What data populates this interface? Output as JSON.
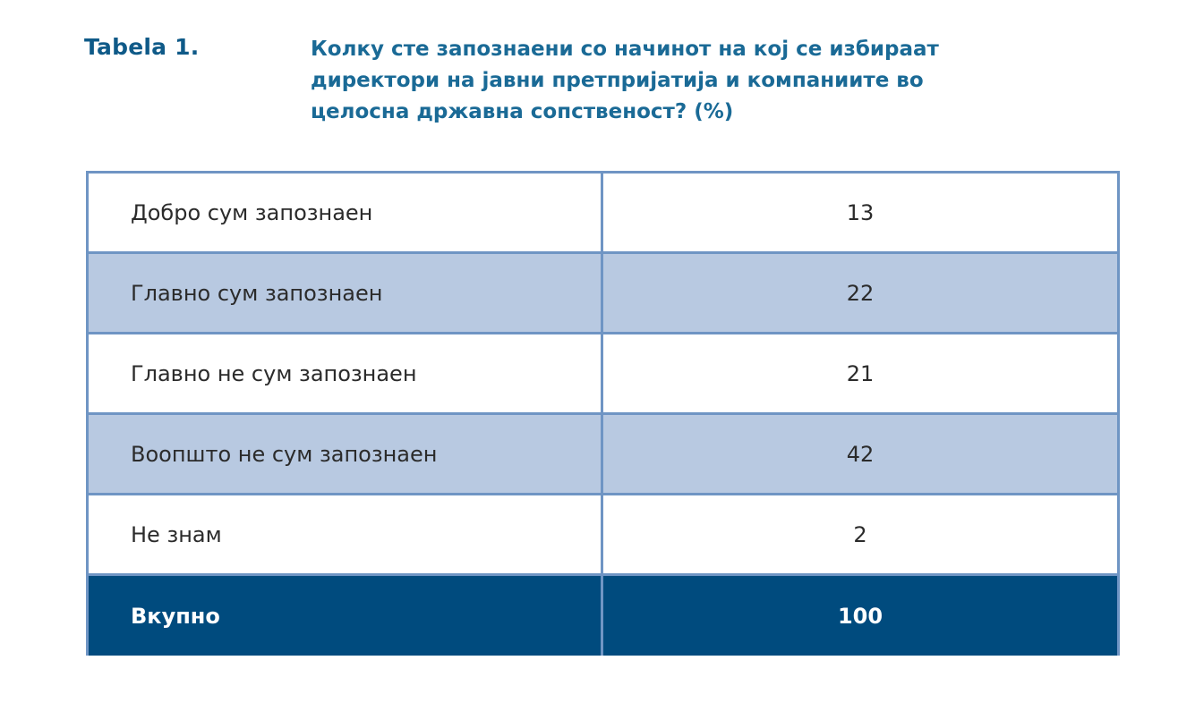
{
  "heading": {
    "label": "Tabela 1.",
    "caption_lines": [
      "Колку сте запознаени со начинот на кој се избираат",
      "директори на јавни претпријатија  и компаниите во",
      "целосна државна сопственост? (%)"
    ]
  },
  "table": {
    "rows": [
      {
        "label": "Добро сум запознаен",
        "value": "13"
      },
      {
        "label": "Главно сум запознаен",
        "value": "22"
      },
      {
        "label": "Главно не сум запознаен",
        "value": "21"
      },
      {
        "label": "Воопшто не сум запознаен",
        "value": "42"
      },
      {
        "label": "Не знам",
        "value": "2"
      }
    ],
    "total": {
      "label": "Вкупно",
      "value": "100"
    }
  },
  "colors": {
    "heading": "#0f5a88",
    "shaded_row": "#b8c9e1",
    "border": "#6f95c4",
    "total_row": "#004b7e"
  }
}
